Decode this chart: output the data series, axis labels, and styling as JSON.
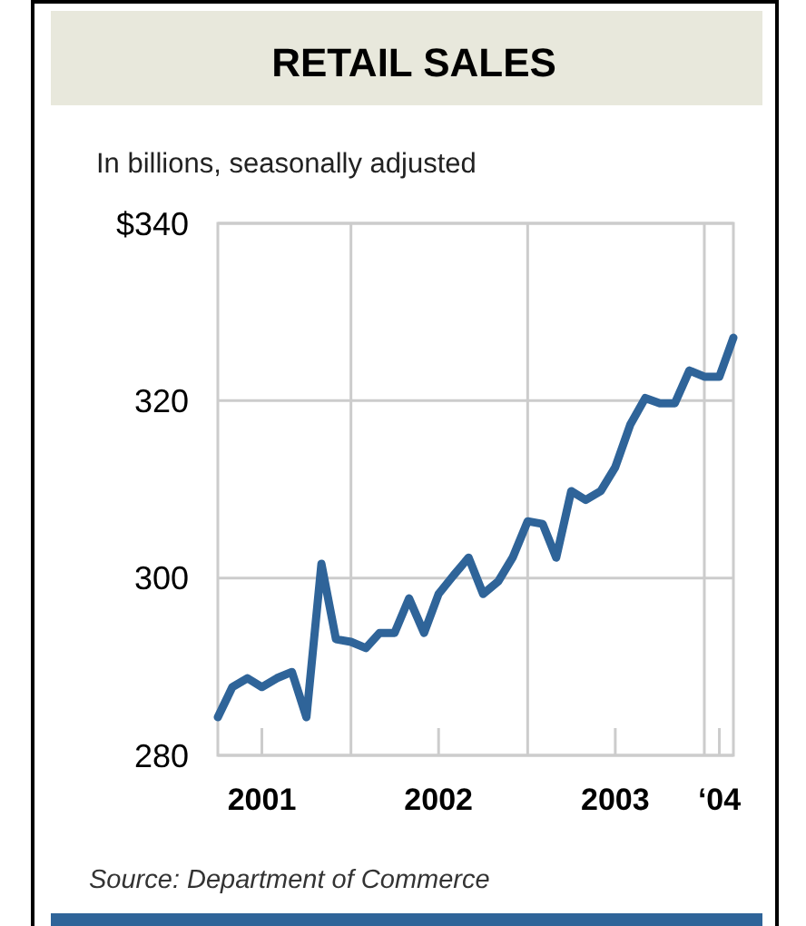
{
  "chart_data": {
    "type": "line",
    "title": "RETAIL SALES",
    "subtitle": "In billions, seasonally adjusted",
    "annotations": [
      "Source: Department of Commerce"
    ],
    "x": [
      "2001-04",
      "2001-05",
      "2001-06",
      "2001-07",
      "2001-08",
      "2001-09",
      "2001-10",
      "2001-11",
      "2001-12",
      "2002-01",
      "2002-02",
      "2002-03",
      "2002-04",
      "2002-05",
      "2002-06",
      "2002-07",
      "2002-08",
      "2002-09",
      "2002-10",
      "2002-11",
      "2002-12",
      "2003-01",
      "2003-02",
      "2003-03",
      "2003-04",
      "2003-05",
      "2003-06",
      "2003-07",
      "2003-08",
      "2003-09",
      "2003-10",
      "2003-11",
      "2003-12",
      "2004-01",
      "2004-02",
      "2004-03"
    ],
    "series": [
      {
        "color": "#2f6499",
        "values": [
          284.3,
          287.7,
          288.7,
          287.7,
          288.7,
          289.4,
          284.3,
          301.6,
          293.1,
          292.8,
          292.1,
          293.8,
          293.8,
          297.7,
          293.8,
          298.2,
          300.3,
          302.3,
          298.2,
          299.6,
          302.3,
          306.4,
          306.1,
          302.3,
          309.8,
          308.8,
          309.8,
          312.5,
          317.3,
          320.3,
          319.7,
          319.7,
          323.4,
          322.7,
          322.7,
          327.1
        ]
      }
    ],
    "xlim": [
      "2001-04",
      "2004-03"
    ],
    "xticks": [
      {
        "value": "2001-07",
        "label": "2001"
      },
      {
        "value": "2002-01",
        "label": null
      },
      {
        "value": "2002-07",
        "label": "2002"
      },
      {
        "value": "2003-01",
        "label": null
      },
      {
        "value": "2003-07",
        "label": "2003"
      },
      {
        "value": "2004-01",
        "label": null
      },
      {
        "value": "2004-02",
        "label": "‘04"
      }
    ],
    "ylim": [
      280,
      340
    ],
    "yticks": [
      {
        "value": 340,
        "label": "$340"
      },
      320,
      300,
      280
    ],
    "grid": true,
    "marker": "none",
    "line_style": "solid"
  }
}
